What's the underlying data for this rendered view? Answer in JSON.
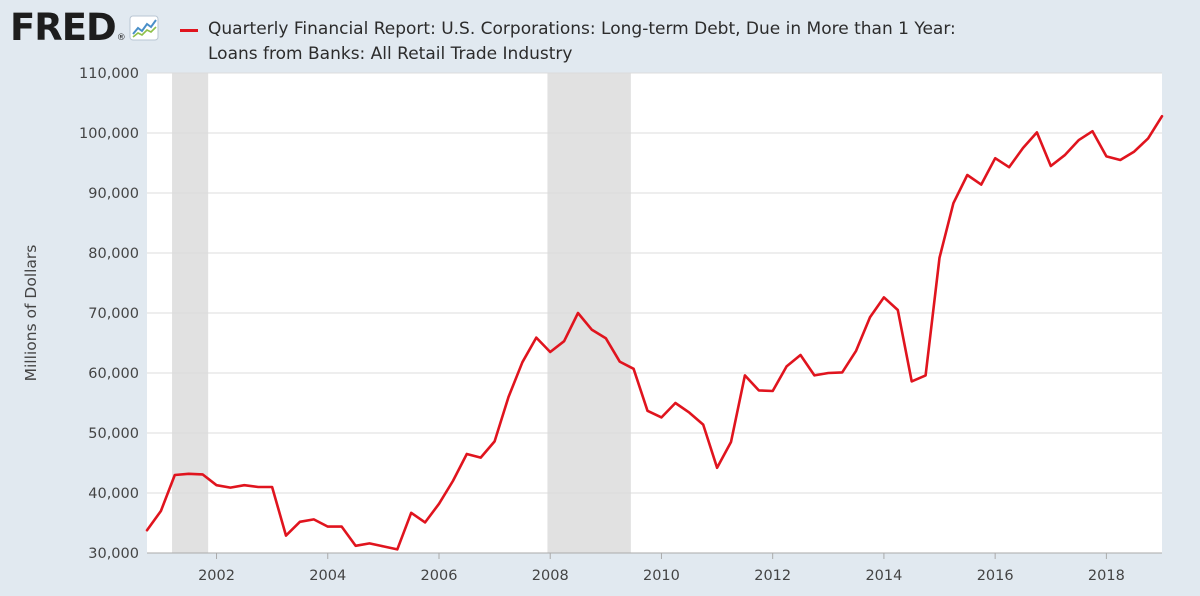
{
  "logo": {
    "text": "FRED",
    "registered": "®",
    "icon": "line-chart-icon"
  },
  "legend": {
    "title_line1": "Quarterly Financial Report: U.S. Corporations: Long-term Debt, Due in More than 1 Year:",
    "title_line2": "Loans from Banks: All Retail Trade Industry",
    "color": "#e0141e"
  },
  "chart_data": {
    "type": "line",
    "title": "Quarterly Financial Report: U.S. Corporations: Long-term Debt, Due in More than 1 Year: Loans from Banks: All Retail Trade Industry",
    "xlabel": "",
    "ylabel": "Millions of Dollars",
    "ylim": [
      30000,
      110000
    ],
    "xlim": [
      2000.75,
      2019.0
    ],
    "yticks": [
      30000,
      40000,
      50000,
      60000,
      70000,
      80000,
      90000,
      100000,
      110000
    ],
    "ytick_labels": [
      "30,000",
      "40,000",
      "50,000",
      "60,000",
      "70,000",
      "80,000",
      "90,000",
      "100,000",
      "110,000"
    ],
    "xticks": [
      2002,
      2004,
      2006,
      2008,
      2010,
      2012,
      2014,
      2016,
      2018
    ],
    "xtick_labels": [
      "2002",
      "2004",
      "2006",
      "2008",
      "2010",
      "2012",
      "2014",
      "2016",
      "2018"
    ],
    "grid": true,
    "recessions": [
      {
        "start": 2001.2,
        "end": 2001.85
      },
      {
        "start": 2007.95,
        "end": 2009.45
      }
    ],
    "colors": {
      "line": "#e0141e",
      "recession": "#e1e1e1",
      "grid": "#dcdcdc",
      "background": "#e1e9f0",
      "plot_bg": "#ffffff"
    },
    "series": [
      {
        "name": "Loans from Banks: All Retail Trade Industry",
        "x": [
          2000.75,
          2001.0,
          2001.25,
          2001.5,
          2001.75,
          2002.0,
          2002.25,
          2002.5,
          2002.75,
          2003.0,
          2003.25,
          2003.5,
          2003.75,
          2004.0,
          2004.25,
          2004.5,
          2004.75,
          2005.0,
          2005.25,
          2005.5,
          2005.75,
          2006.0,
          2006.25,
          2006.5,
          2006.75,
          2007.0,
          2007.25,
          2007.5,
          2007.75,
          2008.0,
          2008.25,
          2008.5,
          2008.75,
          2009.0,
          2009.25,
          2009.5,
          2009.75,
          2010.0,
          2010.25,
          2010.5,
          2010.75,
          2011.0,
          2011.25,
          2011.5,
          2011.75,
          2012.0,
          2012.25,
          2012.5,
          2012.75,
          2013.0,
          2013.25,
          2013.5,
          2013.75,
          2014.0,
          2014.25,
          2014.5,
          2014.75,
          2015.0,
          2015.25,
          2015.5,
          2015.75,
          2016.0,
          2016.25,
          2016.5,
          2016.75,
          2017.0,
          2017.25,
          2017.5,
          2017.75,
          2018.0,
          2018.25,
          2018.5,
          2018.75,
          2019.0
        ],
        "values": [
          33800,
          37000,
          43000,
          43200,
          43100,
          41300,
          40900,
          41300,
          41000,
          41000,
          32900,
          35200,
          35600,
          34400,
          34400,
          31200,
          31600,
          31100,
          30600,
          36700,
          35100,
          38200,
          42000,
          46500,
          45900,
          48600,
          56000,
          61800,
          65900,
          63500,
          65300,
          70000,
          67200,
          65800,
          61900,
          60700,
          53700,
          52600,
          55000,
          53400,
          51400,
          44200,
          48500,
          59600,
          57100,
          57000,
          61100,
          63000,
          59600,
          60000,
          60100,
          63700,
          69300,
          72600,
          70500,
          58600,
          59600,
          79200,
          88300,
          93000,
          91400,
          95800,
          94300,
          97500,
          100100,
          94500,
          96300,
          98800,
          100300,
          96100,
          95500,
          96900,
          99100,
          102800
        ]
      }
    ]
  }
}
